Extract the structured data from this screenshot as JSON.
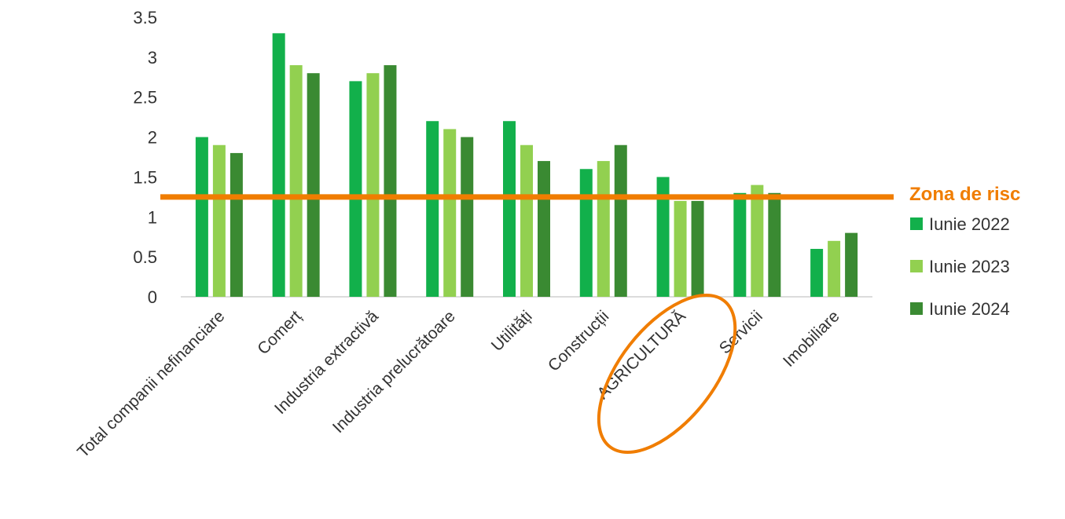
{
  "chart_data": {
    "type": "bar",
    "categories": [
      "Total companii nefinanciare",
      "Comerț",
      "Industria extractivă",
      "Industria prelucrătoare",
      "Utilități",
      "Construcții",
      "AGRICULTURĂ",
      "Servicii",
      "Imobiliare"
    ],
    "series": [
      {
        "name": "Iunie 2022",
        "color": "#12b04b",
        "values": [
          2.0,
          3.3,
          2.7,
          2.2,
          2.2,
          1.6,
          1.5,
          1.3,
          0.6
        ]
      },
      {
        "name": "Iunie 2023",
        "color": "#92d050",
        "values": [
          1.9,
          2.9,
          2.8,
          2.1,
          1.9,
          1.7,
          1.2,
          1.4,
          0.7
        ]
      },
      {
        "name": "Iunie 2024",
        "color": "#3a8a32",
        "values": [
          1.8,
          2.8,
          2.9,
          2.0,
          1.7,
          1.9,
          1.2,
          1.3,
          0.8
        ]
      }
    ],
    "ylim": [
      0,
      3.5
    ],
    "yticks": [
      "0",
      "0.5",
      "1",
      "1.5",
      "2",
      "2.5",
      "3",
      "3.5"
    ],
    "grid": false,
    "legend_position": "right",
    "risk_line": {
      "value": 1.25,
      "label": "Zona de risc",
      "color": "#f07d00"
    },
    "highlighted_category": "AGRICULTURĂ",
    "xlabel": "",
    "ylabel": ""
  }
}
